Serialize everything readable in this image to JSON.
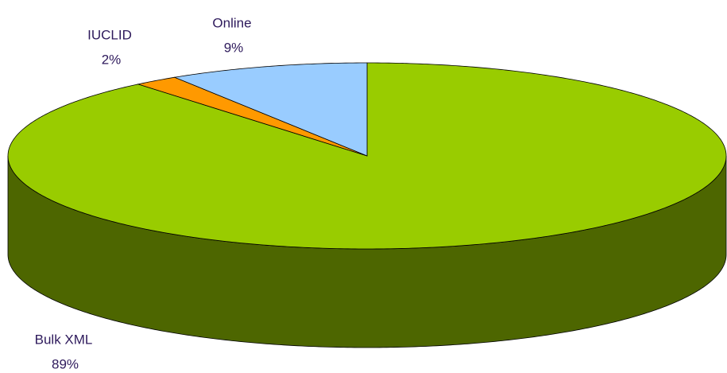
{
  "chart_data": {
    "type": "pie",
    "categories": [
      "Bulk XML",
      "IUCLID",
      "Online"
    ],
    "values": [
      89,
      2,
      9
    ],
    "value_labels": [
      "89%",
      "2%",
      "9%"
    ],
    "colors": [
      "#99cc00",
      "#ff9900",
      "#99ccff"
    ]
  }
}
